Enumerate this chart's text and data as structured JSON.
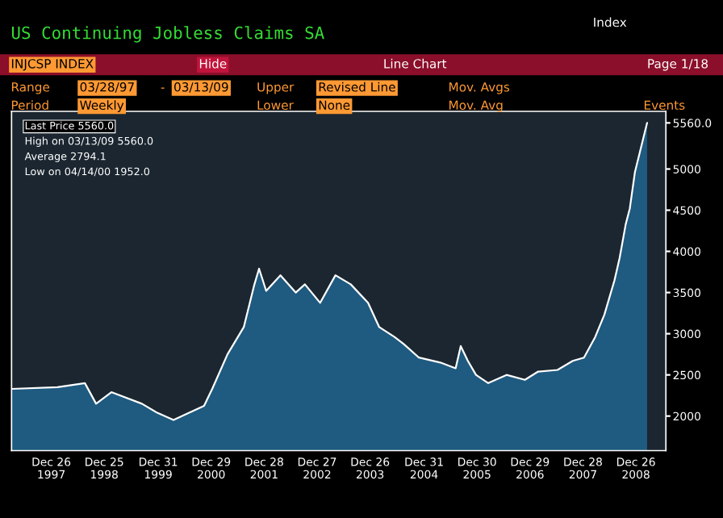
{
  "chart_data": {
    "type": "area",
    "title": "US Continuing Jobless Claims SA",
    "annotations": [
      "Last Price 5560.0",
      "High on 03/13/09 5560.0",
      "Average 2794.1",
      "Low on 04/14/00 1952.0",
      "Index",
      "INJCSP INDEX",
      "Hide",
      "Line Chart",
      "Page 1/18",
      "Range",
      "03/28/97",
      "-",
      "03/13/09",
      "Upper",
      "Revised Line",
      "Mov. Avgs",
      "Period",
      "Weekly",
      "Lower",
      "None",
      "Mov. Avg",
      "Events"
    ],
    "x": [
      "1997-03-28",
      "1998-02-06",
      "1998-08-14",
      "1998-10-30",
      "1999-02-12",
      "1999-09-10",
      "1999-12-24",
      "2000-04-14",
      "2000-11-10",
      "2001-01-05",
      "2001-04-20",
      "2001-08-10",
      "2001-10-19",
      "2001-11-23",
      "2002-01-11",
      "2002-04-19",
      "2002-08-02",
      "2002-10-04",
      "2003-01-17",
      "2003-05-02",
      "2003-08-15",
      "2003-12-12",
      "2004-02-27",
      "2004-06-11",
      "2004-08-13",
      "2004-11-26",
      "2005-04-22",
      "2005-08-05",
      "2005-09-09",
      "2005-10-28",
      "2005-12-23",
      "2006-03-17",
      "2006-07-21",
      "2006-11-24",
      "2007-02-23",
      "2007-07-06",
      "2007-10-19",
      "2008-01-04",
      "2008-03-21",
      "2008-05-23",
      "2008-08-01",
      "2008-09-05",
      "2008-10-17",
      "2008-11-14",
      "2008-12-19",
      "2009-03-13"
    ],
    "series": [
      {
        "color": "#1f5a80",
        "values": [
          2330,
          2350,
          2400,
          2150,
          2290,
          2150,
          2040,
          1952,
          2125,
          2330,
          2750,
          3080,
          3580,
          3790,
          3520,
          3710,
          3500,
          3600,
          3375,
          3710,
          3600,
          3375,
          3080,
          2960,
          2875,
          2710,
          2650,
          2580,
          2850,
          2670,
          2500,
          2400,
          2500,
          2440,
          2540,
          2560,
          2670,
          2710,
          2960,
          3230,
          3650,
          3920,
          4330,
          4520,
          4960,
          5560
        ]
      }
    ],
    "xlim": [
      "1997-03-28",
      "2009-07-20"
    ],
    "xticks": [
      {
        "value": "1997-12-26",
        "label": "Dec 26\n1997"
      },
      {
        "value": "1998-12-25",
        "label": "Dec 25\n1998"
      },
      {
        "value": "1999-12-31",
        "label": "Dec 31\n1999"
      },
      {
        "value": "2000-12-29",
        "label": "Dec 29\n2000"
      },
      {
        "value": "2001-12-28",
        "label": "Dec 28\n2001"
      },
      {
        "value": "2002-12-27",
        "label": "Dec 27\n2002"
      },
      {
        "value": "2003-12-26",
        "label": "Dec 26\n2003"
      },
      {
        "value": "2004-12-31",
        "label": "Dec 31\n2004"
      },
      {
        "value": "2005-12-30",
        "label": "Dec 30\n2005"
      },
      {
        "value": "2006-12-29",
        "label": "Dec 29\n2006"
      },
      {
        "value": "2007-12-28",
        "label": "Dec 28\n2007"
      },
      {
        "value": "2008-12-26",
        "label": "Dec 26\n2008"
      }
    ],
    "ylim": [
      1580,
      5700
    ],
    "yticks": [
      2000,
      2500,
      3000,
      3500,
      4000,
      4500,
      5000,
      {
        "value": 5560,
        "label": "5560.0"
      }
    ],
    "legend": false
  }
}
